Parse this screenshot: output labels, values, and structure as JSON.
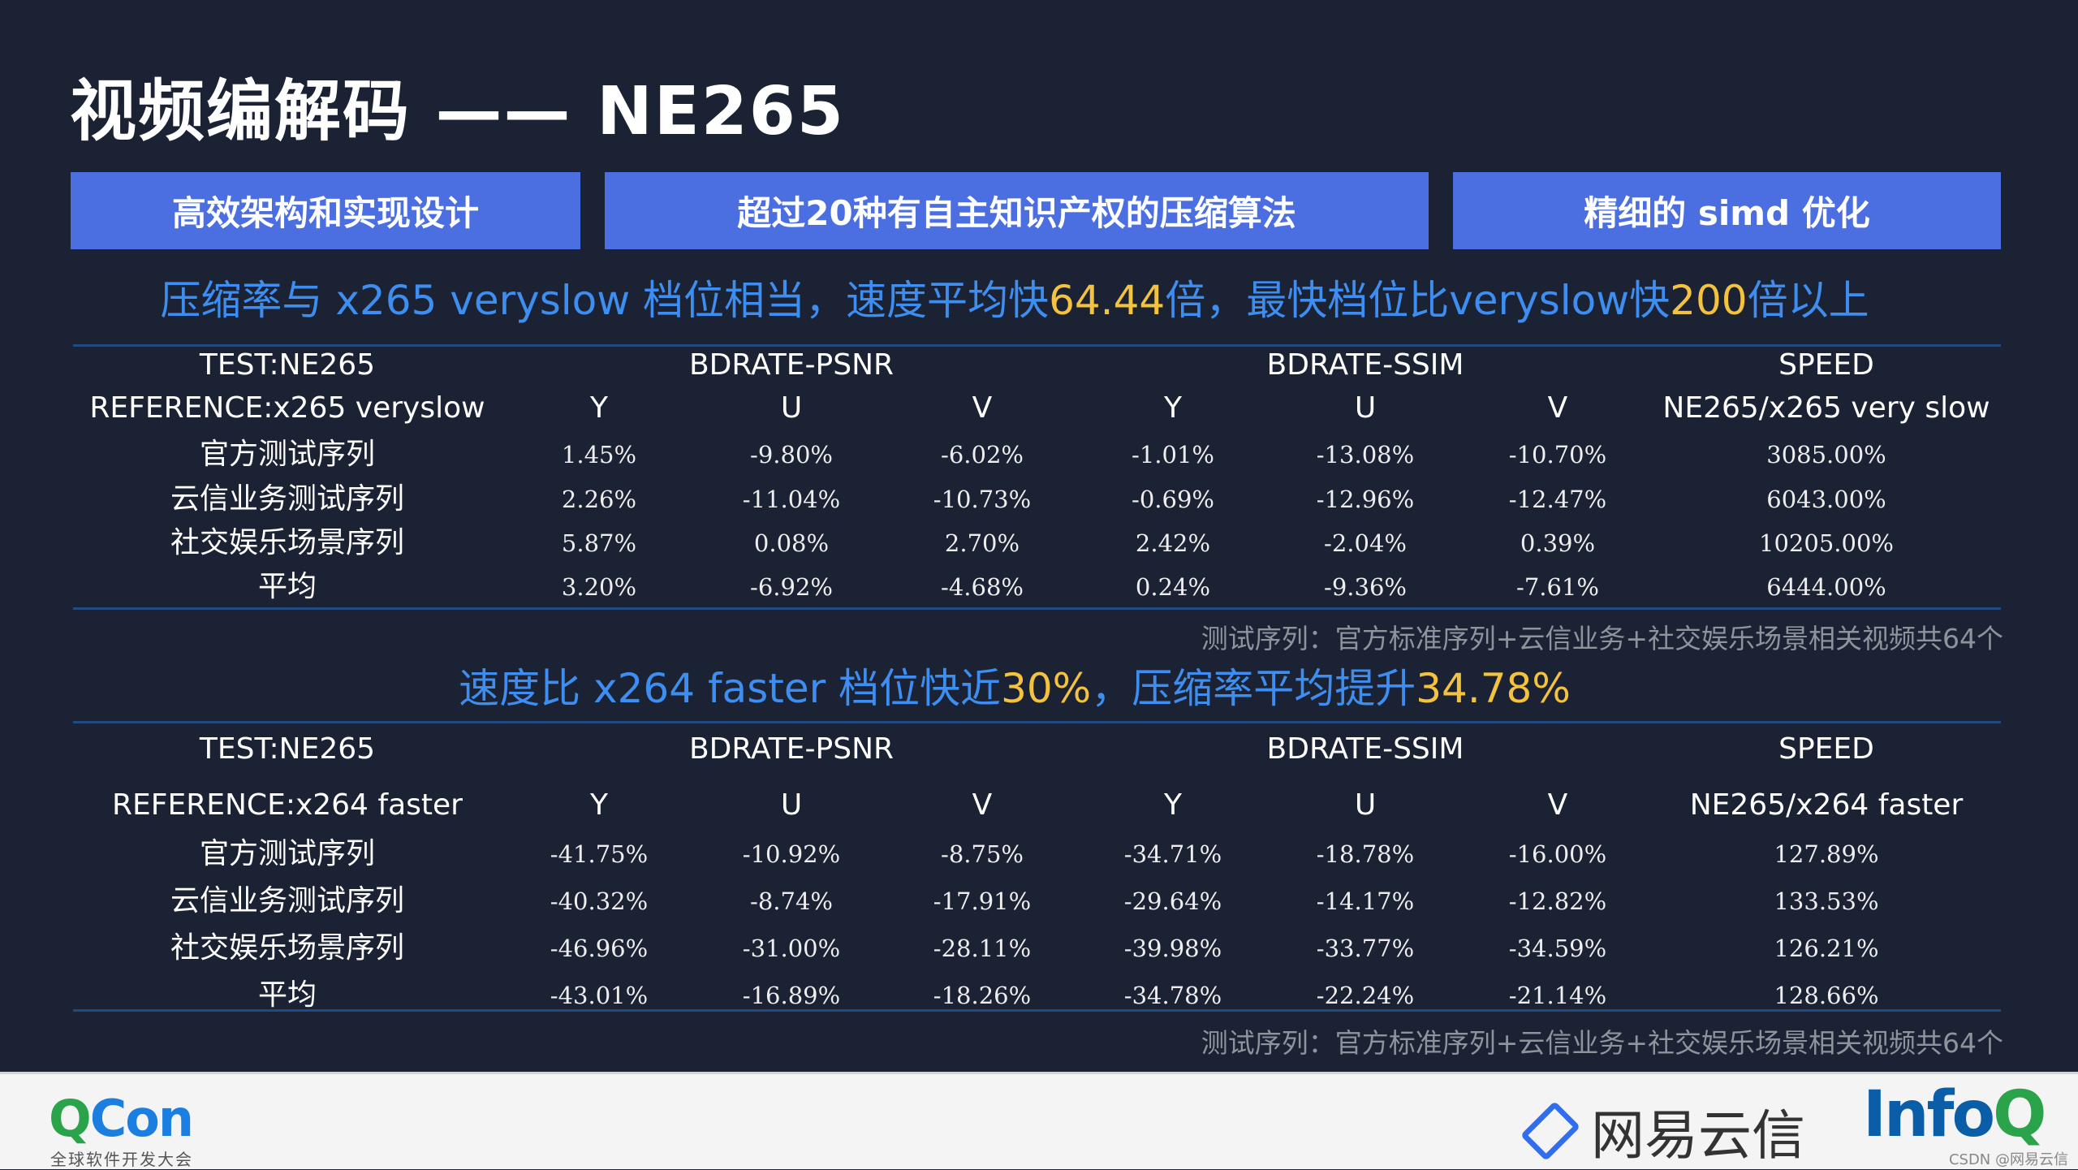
{
  "title": "视频编解码 —— NE265",
  "buttons": [
    "高效架构和实现设计",
    "超过20种有自主知识产权的压缩算法",
    "精细的 simd 优化"
  ],
  "subtitle1": {
    "parts": [
      {
        "t": "压缩率与 x265 veryslow 档位相当，速度平均快",
        "hl": false
      },
      {
        "t": "64.44",
        "hl": true
      },
      {
        "t": "倍，最快档位比veryslow快",
        "hl": false
      },
      {
        "t": "200",
        "hl": true
      },
      {
        "t": "倍以上",
        "hl": false
      }
    ]
  },
  "table1": {
    "header1": [
      "TEST:NE265",
      "BDRATE-PSNR",
      "BDRATE-SSIM",
      "SPEED"
    ],
    "header2": [
      "REFERENCE:x265 veryslow",
      "Y",
      "U",
      "V",
      "Y",
      "U",
      "V",
      "NE265/x265 very slow"
    ],
    "rows": [
      [
        "官方测试序列",
        "1.45%",
        "-9.80%",
        "-6.02%",
        "-1.01%",
        "-13.08%",
        "-10.70%",
        "3085.00%"
      ],
      [
        "云信业务测试序列",
        "2.26%",
        "-11.04%",
        "-10.73%",
        "-0.69%",
        "-12.96%",
        "-12.47%",
        "6043.00%"
      ],
      [
        "社交娱乐场景序列",
        "5.87%",
        "0.08%",
        "2.70%",
        "2.42%",
        "-2.04%",
        "0.39%",
        "10205.00%"
      ],
      [
        "平均",
        "3.20%",
        "-6.92%",
        "-4.68%",
        "0.24%",
        "-9.36%",
        "-7.61%",
        "6444.00%"
      ]
    ],
    "note": "测试序列：官方标准序列+云信业务+社交娱乐场景相关视频共64个"
  },
  "subtitle2": {
    "parts": [
      {
        "t": "速度比 x264 faster 档位快近",
        "hl": false
      },
      {
        "t": "30%",
        "hl": true
      },
      {
        "t": "，压缩率平均提升",
        "hl": false
      },
      {
        "t": "34.78%",
        "hl": true
      }
    ]
  },
  "table2": {
    "header1": [
      "TEST:NE265",
      "BDRATE-PSNR",
      "BDRATE-SSIM",
      "SPEED"
    ],
    "header2": [
      "REFERENCE:x264 faster",
      "Y",
      "U",
      "V",
      "Y",
      "U",
      "V",
      "NE265/x264 faster"
    ],
    "rows": [
      [
        "官方测试序列",
        "-41.75%",
        "-10.92%",
        "-8.75%",
        "-34.71%",
        "-18.78%",
        "-16.00%",
        "127.89%"
      ],
      [
        "云信业务测试序列",
        "-40.32%",
        "-8.74%",
        "-17.91%",
        "-29.64%",
        "-14.17%",
        "-12.82%",
        "133.53%"
      ],
      [
        "社交娱乐场景序列",
        "-46.96%",
        "-31.00%",
        "-28.11%",
        "-39.98%",
        "-33.77%",
        "-34.59%",
        "126.21%"
      ],
      [
        "平均",
        "-43.01%",
        "-16.89%",
        "-18.26%",
        "-34.78%",
        "-22.24%",
        "-21.14%",
        "128.66%"
      ]
    ],
    "note": "测试序列：官方标准序列+云信业务+社交娱乐场景相关视频共64个"
  },
  "footer": {
    "qcon_q": "Q",
    "qcon_rest": "Con",
    "qcon_sub": "全球软件开发大会",
    "netease": "网易云信",
    "infoq_a": "Info",
    "infoq_q": "Q",
    "watermark": "CSDN @网易云信"
  },
  "colors": {
    "background": "#1b2233",
    "button": "#4b6fe0",
    "subtitle": "#3d8ef0",
    "highlight": "#f3c23e"
  }
}
